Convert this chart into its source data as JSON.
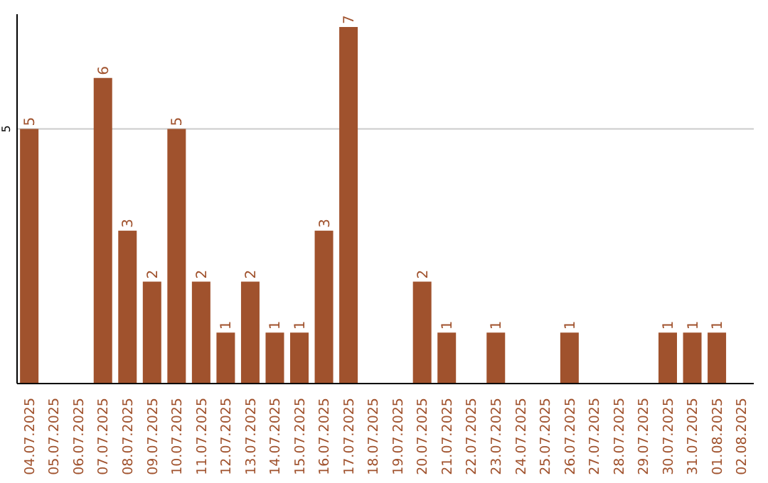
{
  "chart_data": {
    "type": "bar",
    "categories": [
      "04.07.2025",
      "05.07.2025",
      "06.07.2025",
      "07.07.2025",
      "08.07.2025",
      "09.07.2025",
      "10.07.2025",
      "11.07.2025",
      "12.07.2025",
      "13.07.2025",
      "14.07.2025",
      "15.07.2025",
      "16.07.2025",
      "17.07.2025",
      "18.07.2025",
      "19.07.2025",
      "20.07.2025",
      "21.07.2025",
      "22.07.2025",
      "23.07.2025",
      "24.07.2025",
      "25.07.2025",
      "26.07.2025",
      "27.07.2025",
      "28.07.2025",
      "29.07.2025",
      "30.07.2025",
      "31.07.2025",
      "01.08.2025",
      "02.08.2025"
    ],
    "values": [
      5,
      0,
      0,
      6,
      3,
      2,
      5,
      2,
      1,
      2,
      1,
      1,
      3,
      7,
      0,
      0,
      2,
      1,
      0,
      1,
      0,
      0,
      1,
      0,
      0,
      0,
      1,
      1,
      1,
      0
    ],
    "value_labels": [
      "5",
      null,
      null,
      "6",
      "3",
      "2",
      "5",
      "2",
      "1",
      "2",
      "1",
      "1",
      "3",
      "7",
      null,
      null,
      "2",
      "1",
      null,
      "1",
      null,
      null,
      "1",
      null,
      null,
      null,
      "1",
      "1",
      "1",
      null
    ],
    "color": "#a0522d",
    "ylim": [
      0,
      7.25
    ],
    "yticks": [
      5
    ],
    "grid": "y"
  }
}
